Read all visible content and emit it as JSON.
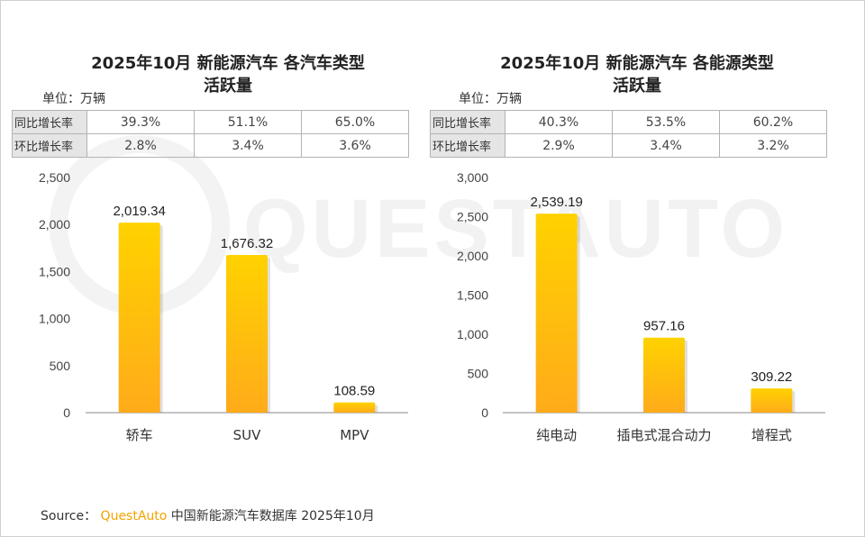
{
  "left": {
    "title_line1": "2025年10月 新能源汽车 各汽车类型",
    "title_line2": "活跃量",
    "unit": "单位：万辆",
    "table": [
      {
        "label": "同比增长率",
        "values": [
          "39.3%",
          "51.1%",
          "65.0%"
        ]
      },
      {
        "label": "环比增长率",
        "values": [
          "2.8%",
          "3.4%",
          "3.6%"
        ]
      }
    ]
  },
  "right": {
    "title_line1": "2025年10月 新能源汽车 各能源类型",
    "title_line2": "活跃量",
    "unit": "单位：万辆",
    "table": [
      {
        "label": "同比增长率",
        "values": [
          "40.3%",
          "53.5%",
          "60.2%"
        ]
      },
      {
        "label": "环比增长率",
        "values": [
          "2.9%",
          "3.4%",
          "3.2%"
        ]
      }
    ]
  },
  "watermark": "QUESTAUTO",
  "source": {
    "prefix": "Source：",
    "brand": "QuestAuto",
    "text": "中国新能源汽车数据库 2025年10月"
  },
  "colors": {
    "bar_top": "#ffd200",
    "bar_bottom": "#ffab1a",
    "brand": "#f5a300"
  },
  "chart_data": [
    {
      "type": "bar",
      "title": "2025年10月 新能源汽车 各汽车类型活跃量",
      "ylabel": "单位：万辆",
      "categories": [
        "轿车",
        "SUV",
        "MPV"
      ],
      "values": [
        2019.34,
        1676.32,
        108.59
      ],
      "value_labels": [
        "2,019.34",
        "1,676.32",
        "108.59"
      ],
      "ylim": [
        0,
        2500
      ],
      "yticks": [
        0,
        500,
        1000,
        1500,
        2000,
        2500
      ],
      "ytick_labels": [
        "0",
        "500",
        "1,000",
        "1,500",
        "2,000",
        "2,500"
      ],
      "grid": false
    },
    {
      "type": "bar",
      "title": "2025年10月 新能源汽车 各能源类型活跃量",
      "ylabel": "单位：万辆",
      "categories": [
        "纯电动",
        "插电式混合动力",
        "增程式"
      ],
      "values": [
        2539.19,
        957.16,
        309.22
      ],
      "value_labels": [
        "2,539.19",
        "957.16",
        "309.22"
      ],
      "ylim": [
        0,
        3000
      ],
      "yticks": [
        0,
        500,
        1000,
        1500,
        2000,
        2500,
        3000
      ],
      "ytick_labels": [
        "0",
        "500",
        "1,000",
        "1,500",
        "2,000",
        "2,500",
        "3,000"
      ],
      "grid": false
    }
  ]
}
